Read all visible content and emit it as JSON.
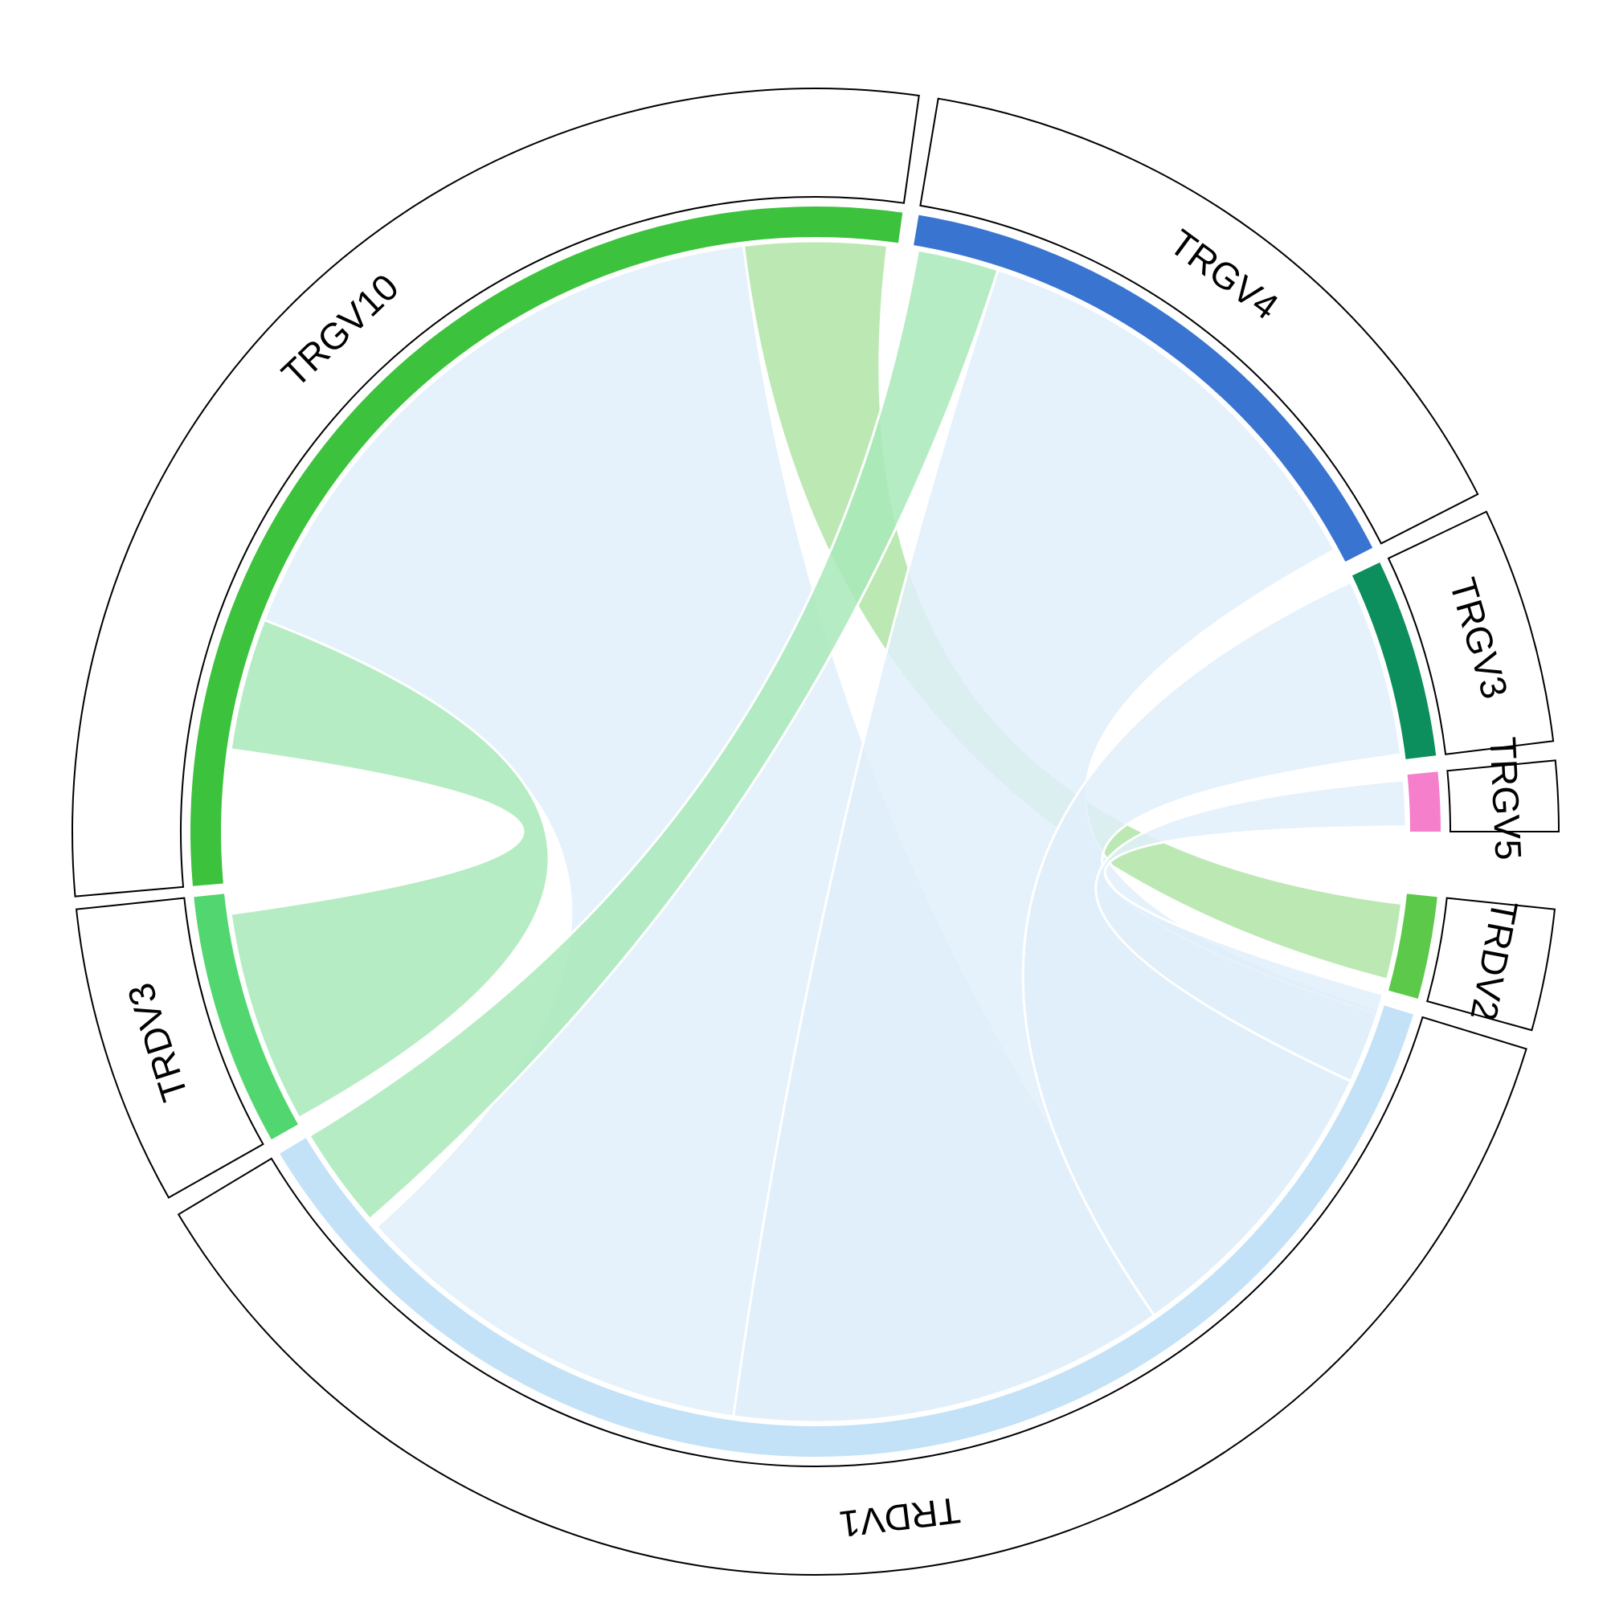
{
  "chart_data": {
    "type": "chord",
    "title": "",
    "sectors": [
      {
        "id": "TRGV10",
        "label": "TRGV10",
        "color": "#3cc23c",
        "start_deg": 175,
        "end_deg": 278
      },
      {
        "id": "TRGV4",
        "label": "TRGV4",
        "color": "#3974d1",
        "start_deg": 279.5,
        "end_deg": 333
      },
      {
        "id": "TRGV3",
        "label": "TRGV3",
        "color": "#0c8f5c",
        "start_deg": 334.5,
        "end_deg": 353
      },
      {
        "id": "TRGV5",
        "label": "TRGV5",
        "color": "#f57fcb",
        "start_deg": 354.5,
        "end_deg": 360
      },
      {
        "id": "TRDV2",
        "label": "TRDV2",
        "color": "#5cc94a",
        "start_deg": 6,
        "end_deg": 15.5
      },
      {
        "id": "TRDV1",
        "label": "TRDV1",
        "color": "#c4e2f7",
        "start_deg": 17,
        "end_deg": 149
      },
      {
        "id": "TRDV3",
        "label": "TRDV3",
        "color": "#52d670",
        "start_deg": 150.5,
        "end_deg": 174
      }
    ],
    "links": [
      {
        "from": "TRGV10",
        "to": "TRDV1",
        "from_deg": [
          201,
          263
        ],
        "to_deg": [
          53,
          138
        ],
        "color": "#e0effa"
      },
      {
        "from": "TRGV10",
        "to": "TRDV3",
        "from_deg": [
          188,
          201
        ],
        "to_deg": [
          151,
          172
        ],
        "color": "#a9e9b8"
      },
      {
        "from": "TRGV10",
        "to": "TRDV2",
        "from_deg": [
          263,
          277
        ],
        "to_deg": [
          7,
          14.5
        ],
        "color": "#b0e4a6"
      },
      {
        "from": "TRGV4",
        "to": "TRDV1",
        "from_deg": [
          288,
          331.5
        ],
        "to_deg": [
          17.5,
          98
        ],
        "color": "#e0effa"
      },
      {
        "from": "TRGV4",
        "to": "TRDV3",
        "from_deg": [
          280,
          288
        ],
        "to_deg": [
          139,
          149
        ],
        "color": "#a9e9b8"
      },
      {
        "from": "TRGV3",
        "to": "TRDV1",
        "from_deg": [
          335,
          352.5
        ],
        "to_deg": [
          18,
          55
        ],
        "color": "#e0effa"
      },
      {
        "from": "TRGV5",
        "to": "TRDV1",
        "from_deg": [
          355,
          359.5
        ],
        "to_deg": [
          16,
          25
        ],
        "color": "#e0effa"
      }
    ]
  }
}
